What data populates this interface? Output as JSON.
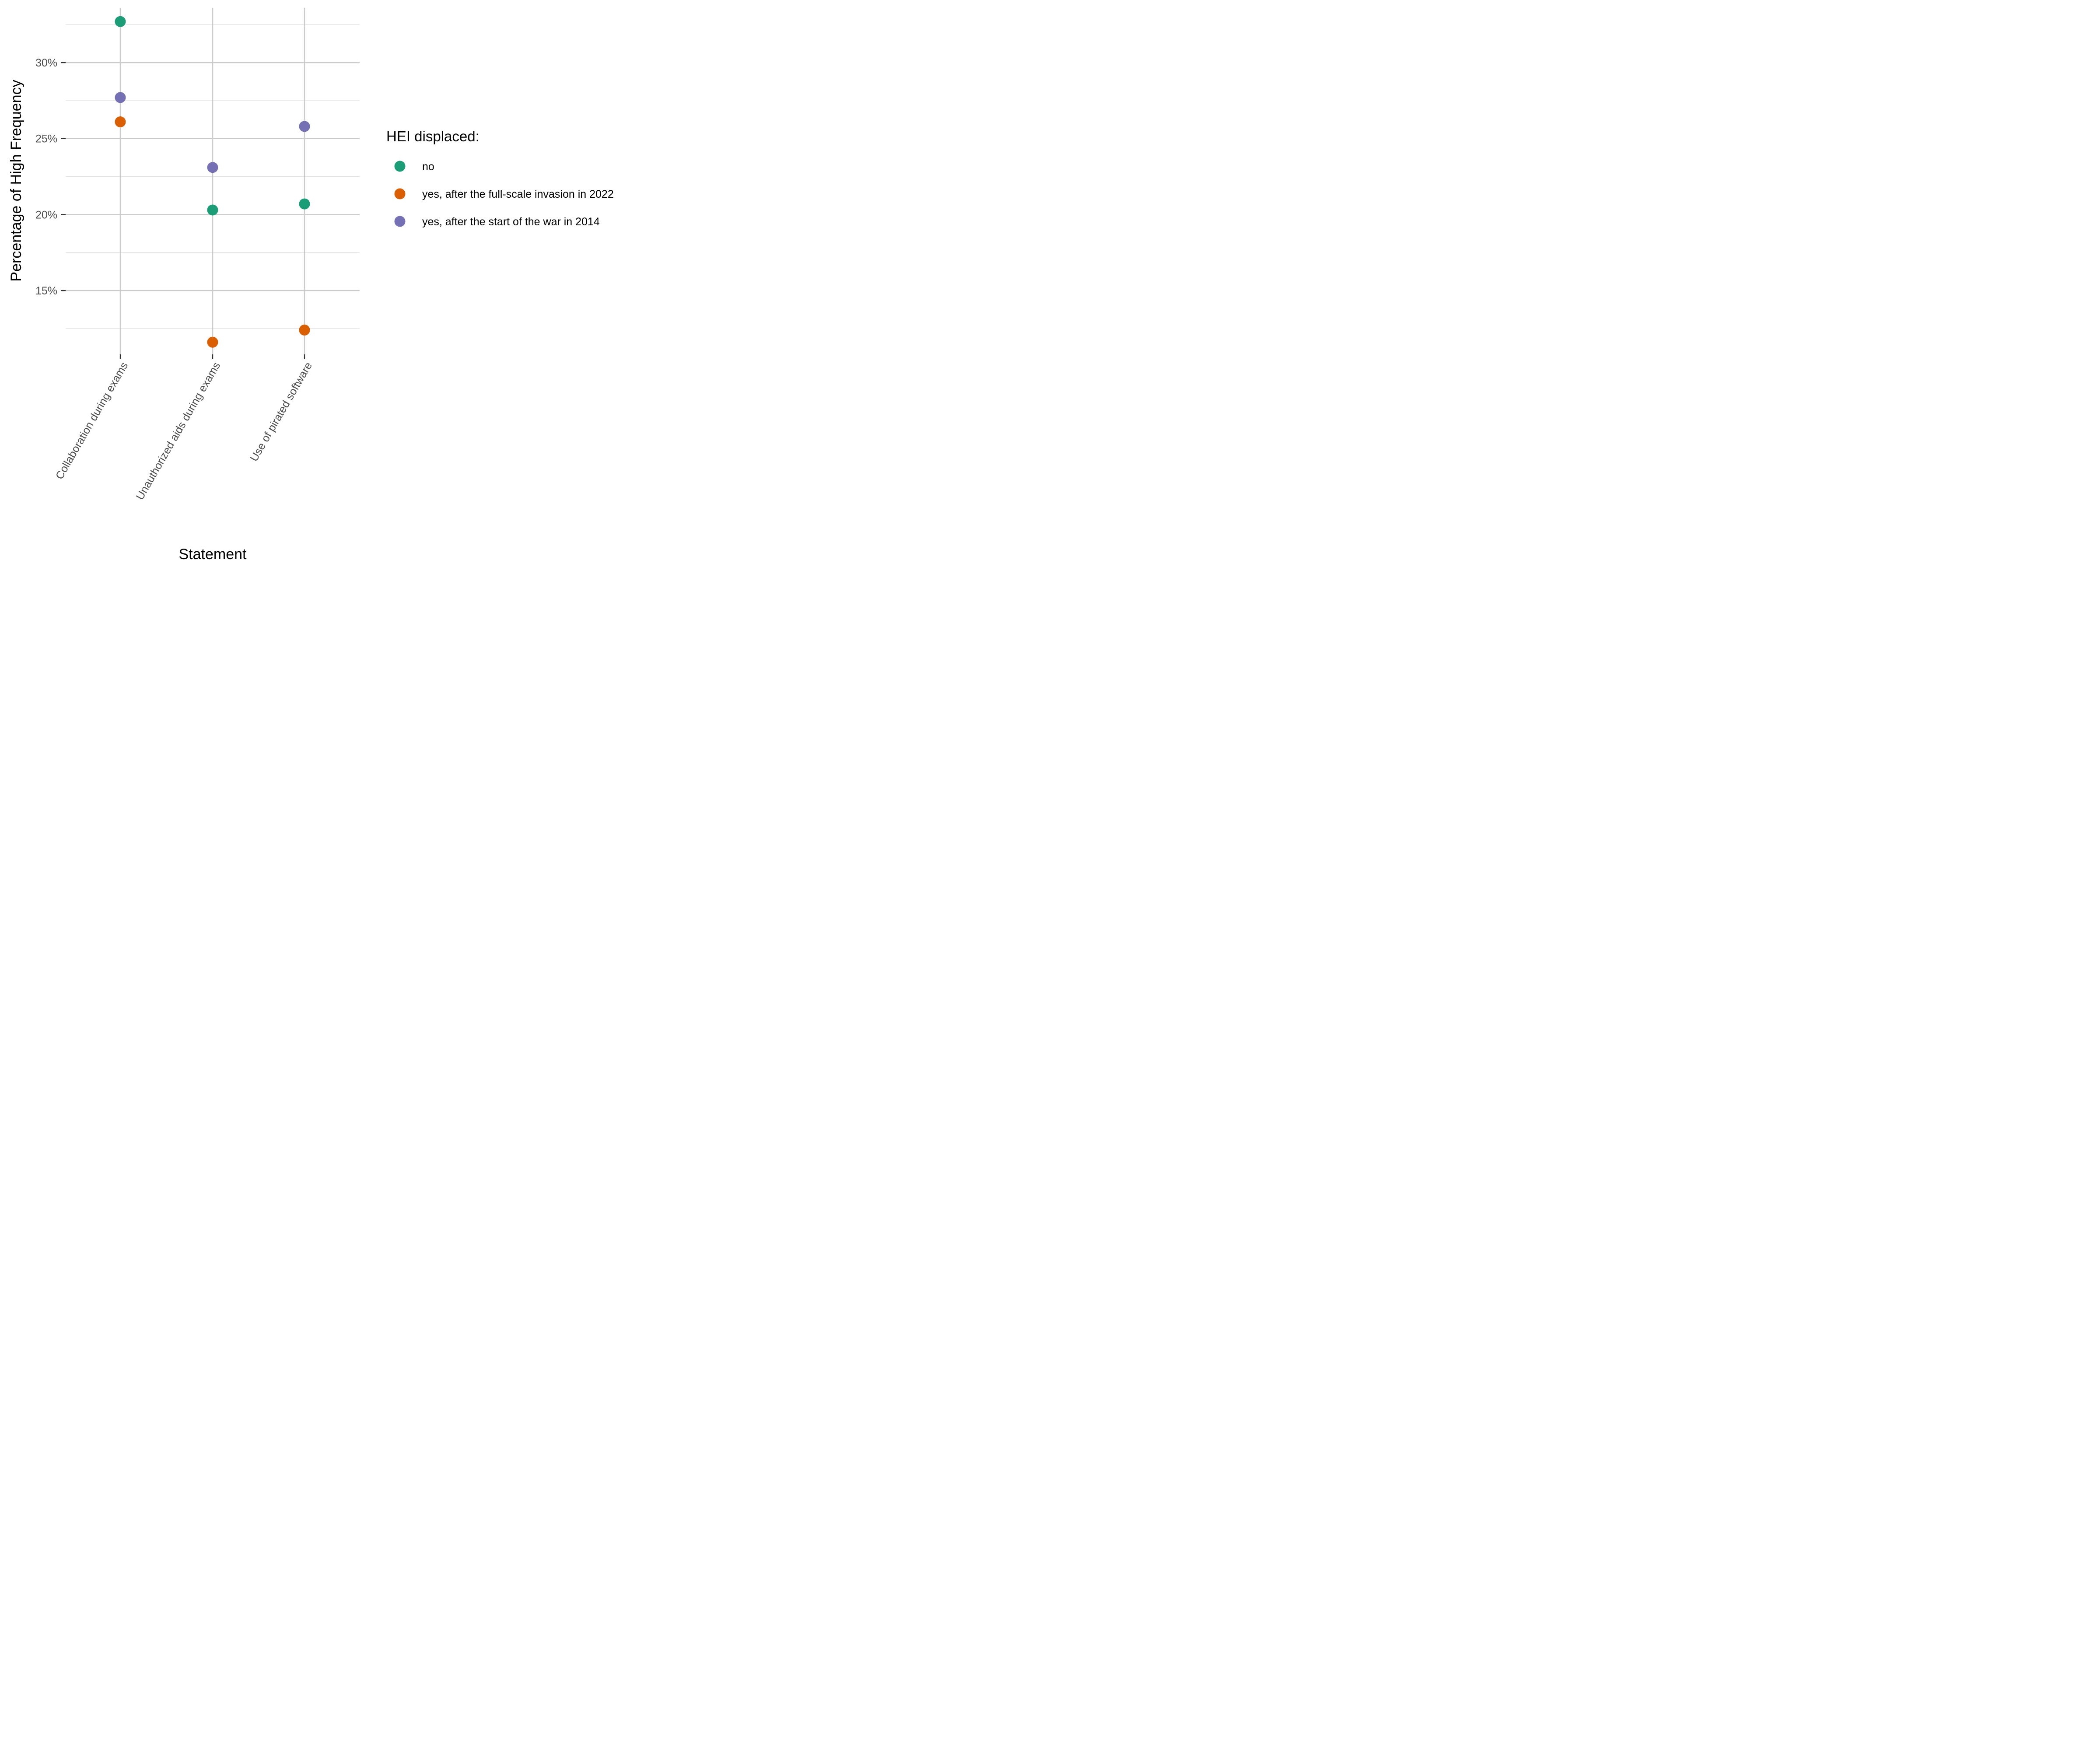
{
  "chart_data": {
    "type": "scatter",
    "title": "",
    "xlabel": "Statement",
    "ylabel": "Percentage of High Frequency",
    "categories": [
      "Collaboration during exams",
      "Unauthorized aids during exams",
      "Use of pirated software"
    ],
    "yticks": [
      15,
      20,
      25,
      30
    ],
    "ytick_labels": [
      "15%",
      "20%",
      "25%",
      "30%"
    ],
    "ylim": [
      10.8,
      33.6
    ],
    "grid": true,
    "legend": {
      "title": "HEI displaced:",
      "position": "right"
    },
    "series": [
      {
        "name": "no",
        "color": "#1B9E77",
        "values": [
          32.7,
          20.3,
          20.7
        ]
      },
      {
        "name": "yes, after the full-scale invasion in 2022",
        "color": "#D95F02",
        "values": [
          26.1,
          11.6,
          12.4
        ]
      },
      {
        "name": "yes, after the start of the war in 2014",
        "color": "#7570B3",
        "values": [
          27.7,
          23.1,
          25.8
        ]
      }
    ]
  }
}
